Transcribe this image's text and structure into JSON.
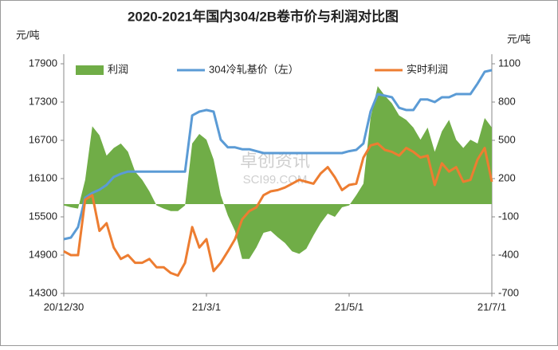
{
  "chart_data": {
    "type": "line",
    "title": "2020-2021年国内304/2B卷市价与利润对比图",
    "y_unit": "元/吨",
    "y2_unit": "元/吨",
    "annotations": [
      "卓创资讯",
      "SCI99.COM"
    ],
    "categories": [
      "20/12/30",
      null,
      null,
      null,
      null,
      null,
      null,
      null,
      null,
      null,
      null,
      null,
      null,
      null,
      null,
      null,
      null,
      null,
      null,
      null,
      "21/3/1",
      null,
      null,
      null,
      null,
      null,
      null,
      null,
      null,
      null,
      null,
      null,
      null,
      null,
      null,
      null,
      null,
      null,
      null,
      null,
      "21/5/1",
      null,
      null,
      null,
      null,
      null,
      null,
      null,
      null,
      null,
      null,
      null,
      null,
      null,
      null,
      null,
      null,
      null,
      null,
      null,
      "21/7/1"
    ],
    "ylim": [
      14300,
      17900
    ],
    "yticks": [
      14300,
      14900,
      15500,
      16100,
      16700,
      17300,
      17900
    ],
    "y2lim": [
      -700,
      1100
    ],
    "y2ticks": [
      -700,
      -400,
      -100,
      200,
      500,
      800,
      1100
    ],
    "grid": false,
    "legend": "top",
    "series": [
      {
        "name": "利润",
        "type": "area",
        "axis": "y2",
        "color": "#70ad47",
        "values": [
          -10,
          -25,
          -35,
          190,
          610,
          540,
          380,
          440,
          475,
          410,
          255,
          190,
          100,
          -10,
          -35,
          -55,
          -55,
          -10,
          475,
          550,
          505,
          350,
          70,
          -90,
          -210,
          -430,
          -430,
          -340,
          -225,
          -210,
          -260,
          -305,
          -370,
          -390,
          -350,
          -245,
          -150,
          -75,
          -100,
          -25,
          -10,
          70,
          160,
          675,
          925,
          850,
          790,
          695,
          660,
          600,
          505,
          600,
          410,
          570,
          660,
          505,
          440,
          505,
          475,
          675,
          600
        ]
      },
      {
        "name": "304冷轧基价（左）",
        "type": "line",
        "axis": "y",
        "color": "#5b9bd5",
        "values": [
          15150,
          15175,
          15340,
          15800,
          15875,
          15925,
          16000,
          16125,
          16175,
          16210,
          16210,
          16210,
          16210,
          16210,
          16210,
          16210,
          16210,
          16210,
          17090,
          17150,
          17175,
          17150,
          16710,
          16590,
          16590,
          16560,
          16560,
          16530,
          16500,
          16500,
          16500,
          16500,
          16500,
          16500,
          16500,
          16500,
          16500,
          16500,
          16500,
          16500,
          16530,
          16550,
          16650,
          17150,
          17425,
          17400,
          17375,
          17210,
          17175,
          17175,
          17340,
          17340,
          17300,
          17375,
          17375,
          17425,
          17425,
          17425,
          17590,
          17775,
          17800
        ]
      },
      {
        "name": "实时利润",
        "type": "line",
        "axis": "y2",
        "color": "#ed7d31",
        "values": [
          -370,
          -400,
          -400,
          35,
          70,
          -210,
          -150,
          -340,
          -430,
          -400,
          -460,
          -460,
          -430,
          -495,
          -495,
          -540,
          -560,
          -460,
          -180,
          -340,
          -275,
          -525,
          -460,
          -370,
          -275,
          -120,
          -55,
          -25,
          70,
          100,
          110,
          130,
          160,
          190,
          175,
          160,
          240,
          290,
          210,
          110,
          150,
          160,
          365,
          460,
          475,
          425,
          410,
          380,
          440,
          410,
          365,
          380,
          150,
          320,
          255,
          290,
          175,
          190,
          350,
          440,
          175
        ]
      }
    ]
  }
}
